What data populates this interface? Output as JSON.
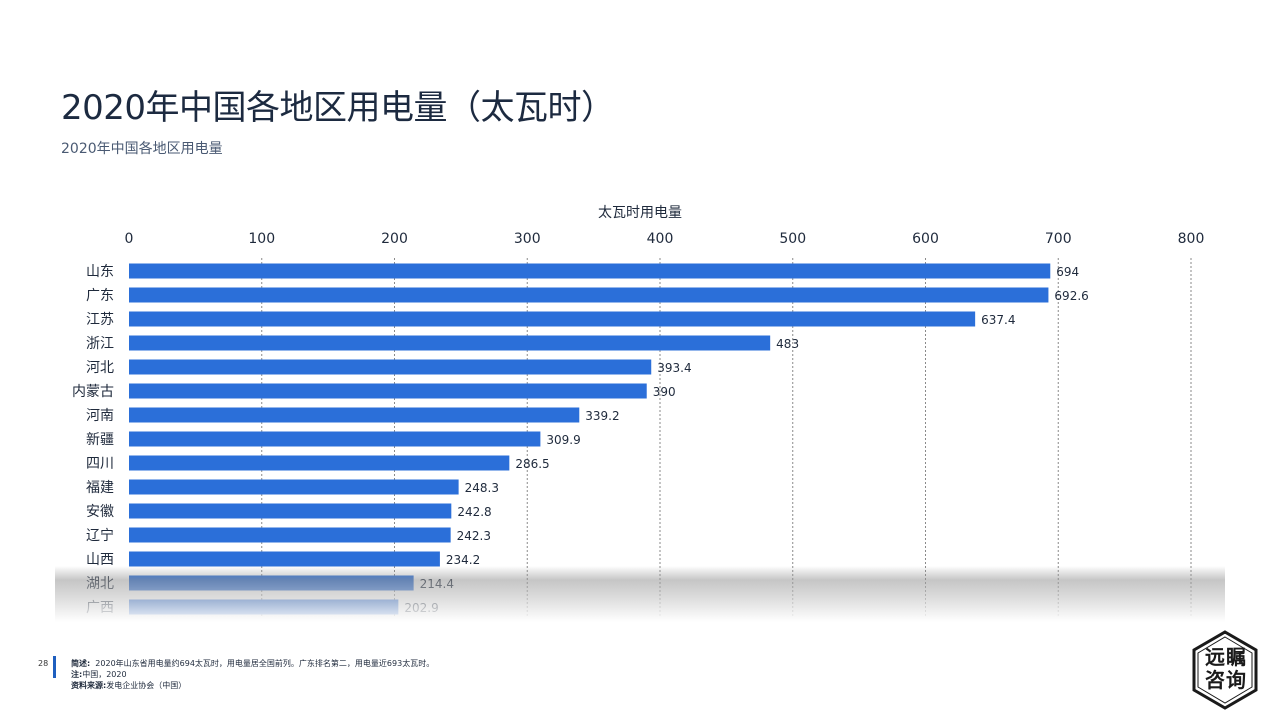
{
  "title": "2020年中国各地区用电量（太瓦时）",
  "subtitle": "2020年中国各地区用电量",
  "chart_data": {
    "type": "bar",
    "orientation": "horizontal",
    "xlabel": "太瓦时用电量",
    "xlim": [
      0,
      800
    ],
    "xticks": [
      0,
      100,
      200,
      300,
      400,
      500,
      600,
      700,
      800
    ],
    "grid": "vertical dotted",
    "bar_color": "#2b6fd9",
    "categories": [
      "山东",
      "广东",
      "江苏",
      "浙江",
      "河北",
      "内蒙古",
      "河南",
      "新疆",
      "四川",
      "福建",
      "安徽",
      "辽宁",
      "山西",
      "湖北",
      "广西"
    ],
    "values": [
      694,
      692.6,
      637.4,
      483,
      393.4,
      390,
      339.2,
      309.9,
      286.5,
      248.3,
      242.8,
      242.3,
      234.2,
      214.4,
      202.9
    ],
    "data_labels": [
      "694",
      "692.6",
      "637.4",
      "483",
      "393.4",
      "390",
      "339.2",
      "309.9",
      "286.5",
      "248.3",
      "242.8",
      "242.3",
      "234.2",
      "214.4",
      "202.9"
    ]
  },
  "footer": {
    "page_number": "28",
    "summary_label": "简述:",
    "summary_text": "2020年山东省用电量约694太瓦时，用电量居全国前列。广东排名第二，用电量近693太瓦时。",
    "note_label": "注:",
    "note_text": "中国，2020",
    "source_label": "资料来源:",
    "source_text": "发电企业协会（中国）"
  },
  "logo": {
    "line1": "远瞩",
    "line2": "咨询"
  }
}
